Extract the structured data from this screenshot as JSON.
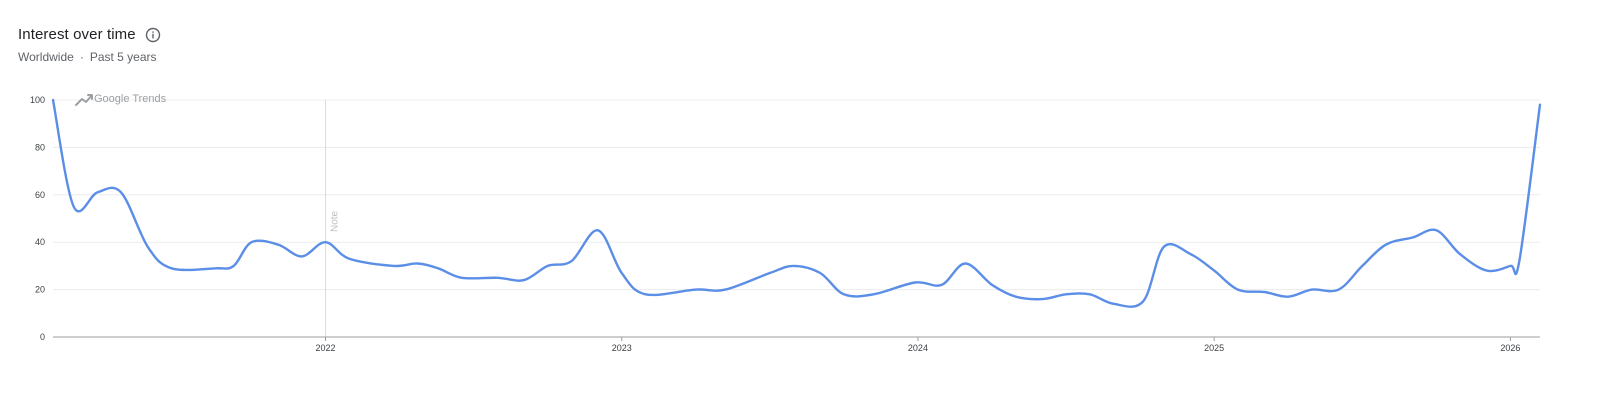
{
  "header": {
    "title": "Interest over time",
    "region": "Worldwide",
    "separator": "·",
    "period": "Past 5 years",
    "info_icon": "info-circle-icon"
  },
  "watermark": {
    "text": "Google Trends",
    "icon": "trending-up-icon"
  },
  "colors": {
    "line": "#5b8ee6",
    "grid": "#ececec",
    "axis": "#9e9e9e",
    "text": "#202124",
    "subtext": "#5f6368"
  },
  "chart_data": {
    "type": "line",
    "title": "",
    "xlabel": "",
    "ylabel": "",
    "ylim": [
      0,
      100
    ],
    "yticks": [
      "0",
      "20",
      "40",
      "60",
      "80",
      "100"
    ],
    "xlim": [
      2021.08,
      2026.1
    ],
    "xticks": [
      {
        "value": 2022,
        "label": "2022"
      },
      {
        "value": 2023,
        "label": "2023"
      },
      {
        "value": 2024,
        "label": "2024"
      },
      {
        "value": 2025,
        "label": "2025"
      },
      {
        "value": 2026,
        "label": "2026"
      }
    ],
    "grid": true,
    "legend": "none",
    "annotations": [
      {
        "x": 2022.0,
        "label": "Note"
      }
    ],
    "series": [
      {
        "points": [
          [
            2021.08,
            100
          ],
          [
            2021.15,
            55
          ],
          [
            2021.23,
            61
          ],
          [
            2021.31,
            61
          ],
          [
            2021.4,
            38
          ],
          [
            2021.48,
            29
          ],
          [
            2021.63,
            29
          ],
          [
            2021.69,
            30
          ],
          [
            2021.75,
            40
          ],
          [
            2021.84,
            39
          ],
          [
            2021.92,
            34
          ],
          [
            2022.0,
            40
          ],
          [
            2022.08,
            33
          ],
          [
            2022.23,
            30
          ],
          [
            2022.31,
            31
          ],
          [
            2022.38,
            29
          ],
          [
            2022.46,
            25
          ],
          [
            2022.58,
            25
          ],
          [
            2022.67,
            24
          ],
          [
            2022.75,
            30
          ],
          [
            2022.83,
            32
          ],
          [
            2022.92,
            45
          ],
          [
            2023.0,
            27
          ],
          [
            2023.08,
            18
          ],
          [
            2023.25,
            20
          ],
          [
            2023.35,
            20
          ],
          [
            2023.5,
            27
          ],
          [
            2023.58,
            30
          ],
          [
            2023.67,
            27
          ],
          [
            2023.75,
            18
          ],
          [
            2023.85,
            18
          ],
          [
            2023.99,
            23
          ],
          [
            2024.08,
            22
          ],
          [
            2024.16,
            31
          ],
          [
            2024.25,
            22
          ],
          [
            2024.33,
            17
          ],
          [
            2024.42,
            16
          ],
          [
            2024.5,
            18
          ],
          [
            2024.58,
            18
          ],
          [
            2024.66,
            14
          ],
          [
            2024.76,
            15
          ],
          [
            2024.83,
            38
          ],
          [
            2024.92,
            35
          ],
          [
            2025.0,
            28
          ],
          [
            2025.08,
            20
          ],
          [
            2025.17,
            19
          ],
          [
            2025.25,
            17
          ],
          [
            2025.33,
            20
          ],
          [
            2025.42,
            20
          ],
          [
            2025.5,
            30
          ],
          [
            2025.58,
            39
          ],
          [
            2025.67,
            42
          ],
          [
            2025.75,
            45
          ],
          [
            2025.83,
            35
          ],
          [
            2025.92,
            28
          ],
          [
            2026.0,
            30
          ],
          [
            2026.03,
            32
          ],
          [
            2026.1,
            98
          ]
        ]
      }
    ]
  }
}
